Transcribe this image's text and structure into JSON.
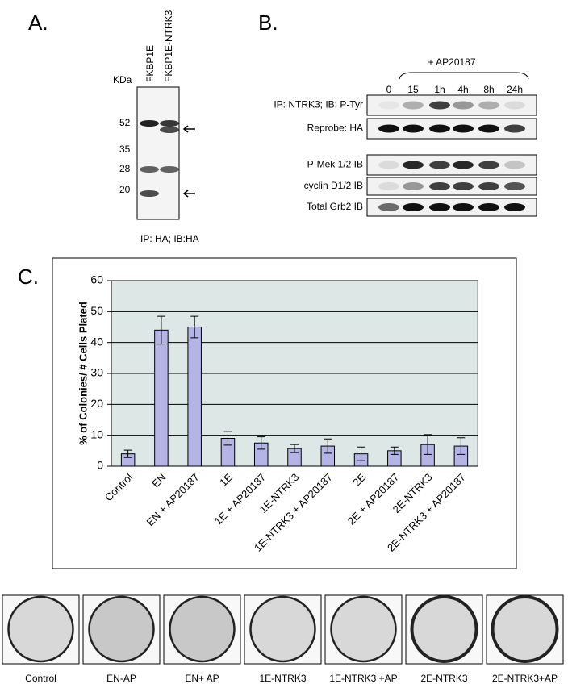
{
  "panel_a": {
    "label": "A.",
    "lanes": [
      "FKBP1E",
      "FKBP1E-NTRK3"
    ],
    "unit": "KDa",
    "markers": [
      "52",
      "35",
      "28",
      "20"
    ],
    "caption": "IP: HA; IB:HA"
  },
  "panel_b": {
    "label": "B.",
    "treatment": "+ AP20187",
    "times": [
      "0",
      "15",
      "1h",
      "4h",
      "8h",
      "24h"
    ],
    "rows": [
      "IP: NTRK3; IB: P-Tyr",
      "Reprobe: HA",
      "P-Mek 1/2 IB",
      "cyclin D1/2 IB",
      "Total Grb2 IB"
    ]
  },
  "panel_c": {
    "label": "C."
  },
  "chart_data": {
    "type": "bar",
    "ylabel": "% of Colonies/ # Cells Plated",
    "categories": [
      "Control",
      "EN",
      "EN + AP20187",
      "1E",
      "1E + AP20187",
      "1E-NTRK3",
      "1E-NTRK3 + AP20187",
      "2E",
      "2E + AP20187",
      "2E-NTRK3",
      "2E-NTRK3 + AP20187"
    ],
    "values": [
      4,
      44,
      45,
      9,
      7.5,
      5.7,
      6.5,
      4,
      5,
      7,
      6.5
    ],
    "errors": [
      1.2,
      4.5,
      3.5,
      2.2,
      2,
      1.3,
      2.3,
      2.2,
      1.2,
      3.2,
      2.7
    ],
    "color": "#b4b4e6",
    "ylim": [
      0,
      60
    ],
    "yticks": [
      0,
      10,
      20,
      30,
      40,
      50,
      60
    ],
    "grid": true
  },
  "plates": {
    "labels": [
      "Control",
      "EN-AP",
      "EN+ AP",
      "1E-NTRK3",
      "1E-NTRK3 +AP",
      "2E-NTRK3",
      "2E-NTRK3+AP"
    ]
  }
}
